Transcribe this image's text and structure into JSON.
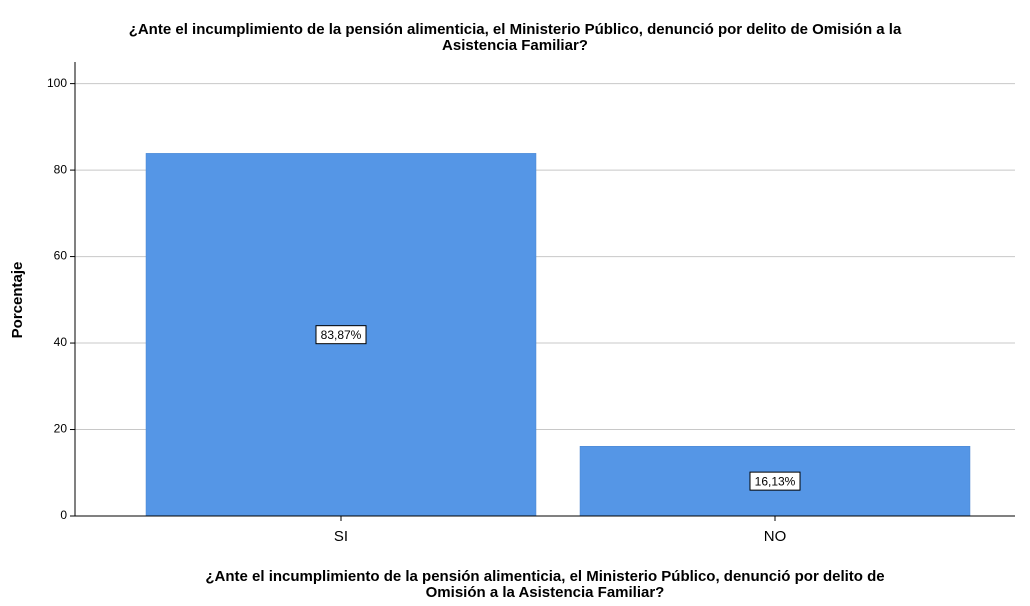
{
  "chart_data": {
    "type": "bar",
    "title": [
      "¿Ante el incumplimiento de la pensión alimenticia, el Ministerio Público, denunció por delito de Omisión a la",
      "Asistencia Familiar?"
    ],
    "x_label": [
      "¿Ante el incumplimiento de la pensión alimenticia, el Ministerio Público, denunció por delito de",
      "Omisión a la Asistencia Familiar?"
    ],
    "y_label": "Porcentaje",
    "categories": [
      "SI",
      "NO"
    ],
    "values": [
      83.87,
      16.13
    ],
    "value_labels": [
      "83,87%",
      "16,13%"
    ],
    "color": "#5596e6",
    "ylim": [
      0,
      105
    ],
    "yticks": [
      0,
      20,
      40,
      60,
      80,
      100
    ],
    "grid": true
  }
}
